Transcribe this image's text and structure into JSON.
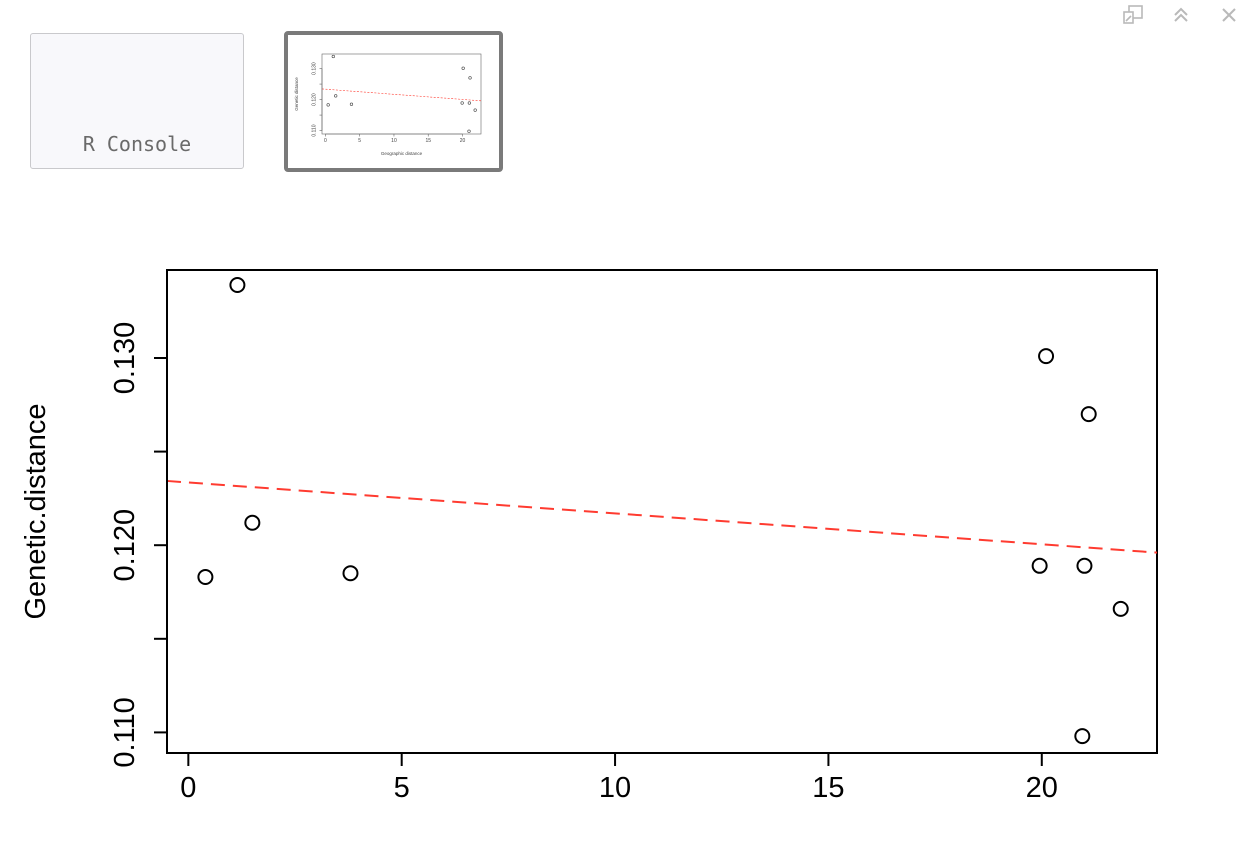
{
  "window_controls": {
    "icons": [
      "popout-icon",
      "collapse-icon",
      "close-icon"
    ]
  },
  "tabs": {
    "console_label": "R Console"
  },
  "plot": {
    "ylabel": "Genetic.distance",
    "xlabel": "Geographic distance"
  },
  "chart_data": {
    "type": "scatter",
    "title": "",
    "xlabel": "",
    "ylabel": "Genetic.distance",
    "xlim": [
      -0.5,
      22.7
    ],
    "ylim": [
      0.1089,
      0.1347
    ],
    "x_ticks": [
      0,
      5,
      10,
      15,
      20
    ],
    "y_ticks": [
      0.11,
      0.115,
      0.12,
      0.125,
      0.13
    ],
    "y_tick_labels": [
      "0.110",
      "",
      "0.120",
      "",
      "0.130"
    ],
    "points": [
      {
        "x": 0.4,
        "y": 0.1183
      },
      {
        "x": 1.15,
        "y": 0.1339
      },
      {
        "x": 1.5,
        "y": 0.1212
      },
      {
        "x": 3.8,
        "y": 0.1185
      },
      {
        "x": 19.95,
        "y": 0.1189
      },
      {
        "x": 20.1,
        "y": 0.1301
      },
      {
        "x": 20.95,
        "y": 0.1098
      },
      {
        "x": 21.0,
        "y": 0.1189
      },
      {
        "x": 21.1,
        "y": 0.127
      },
      {
        "x": 21.85,
        "y": 0.1166
      }
    ],
    "trendline": {
      "style": "dashed",
      "color": "#ff3b30",
      "intercept": 0.12335,
      "slope": -0.000165
    },
    "grid": false
  },
  "thumbnail": {
    "xlabel": "Geographic distance",
    "ylabel": "Genetic distance"
  }
}
